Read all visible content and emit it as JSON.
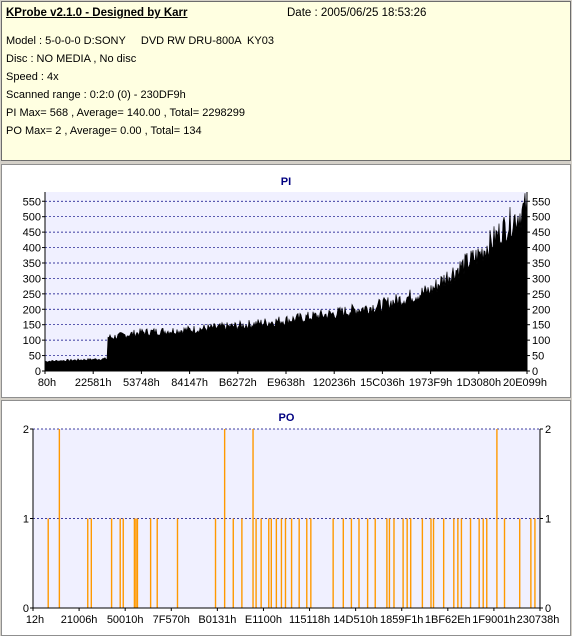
{
  "info": {
    "title": "KProbe v2.1.0 - Designed by Karr",
    "date": "Date : 2005/06/25 18:53:26",
    "model": "Model : 5-0-0-0 D:SONY     DVD RW DRU-800A  KY03",
    "disc": "Disc : NO MEDIA , No disc",
    "speed": "Speed : 4x",
    "range": "Scanned range : 0:2:0 (0) - 230DF9h",
    "pi_summary": "PI Max= 568 , Average= 140.00 , Total= 2298299",
    "po_summary": "PO Max= 2 , Average= 0.00 , Total= 134"
  },
  "chart_data": [
    {
      "type": "bar",
      "title": "PI",
      "ylim": [
        0,
        580
      ],
      "yticks": [
        0,
        50,
        100,
        150,
        200,
        250,
        300,
        350,
        400,
        450,
        500,
        550
      ],
      "xticks": [
        "80h",
        "22581h",
        "53748h",
        "84147h",
        "B6272h",
        "E9638h",
        "120236h",
        "15C036h",
        "1973F9h",
        "1D3080h",
        "20E099h"
      ],
      "grid": true,
      "color": "#000000",
      "profile": [
        [
          0,
          30
        ],
        [
          0.13,
          38
        ],
        [
          0.14,
          105
        ],
        [
          0.2,
          120
        ],
        [
          0.3,
          128
        ],
        [
          0.4,
          140
        ],
        [
          0.5,
          158
        ],
        [
          0.6,
          178
        ],
        [
          0.7,
          205
        ],
        [
          0.8,
          250
        ],
        [
          0.84,
          300
        ],
        [
          0.9,
          360
        ],
        [
          0.95,
          440
        ],
        [
          1.0,
          510
        ]
      ]
    },
    {
      "type": "bar",
      "title": "PO",
      "ylim": [
        0,
        2
      ],
      "yticks": [
        0,
        1,
        2
      ],
      "xticks": [
        "12h",
        "21006h",
        "50010h",
        "7F570h",
        "B0131h",
        "E1100h",
        "115118h",
        "14D510h",
        "1859F1h",
        "1BF62Eh",
        "1F9001h",
        "230738h"
      ],
      "grid": true,
      "color": "#ff9900",
      "spikes": [
        [
          0.03,
          1
        ],
        [
          0.052,
          2
        ],
        [
          0.108,
          1
        ],
        [
          0.115,
          1
        ],
        [
          0.155,
          1
        ],
        [
          0.172,
          1
        ],
        [
          0.178,
          1
        ],
        [
          0.2,
          1
        ],
        [
          0.203,
          1
        ],
        [
          0.206,
          1
        ],
        [
          0.232,
          1
        ],
        [
          0.245,
          1
        ],
        [
          0.285,
          1
        ],
        [
          0.36,
          1
        ],
        [
          0.378,
          2
        ],
        [
          0.395,
          1
        ],
        [
          0.412,
          1
        ],
        [
          0.434,
          2
        ],
        [
          0.44,
          1
        ],
        [
          0.45,
          1
        ],
        [
          0.465,
          1
        ],
        [
          0.47,
          1
        ],
        [
          0.48,
          1
        ],
        [
          0.49,
          1
        ],
        [
          0.498,
          1
        ],
        [
          0.51,
          1
        ],
        [
          0.525,
          1
        ],
        [
          0.54,
          1
        ],
        [
          0.548,
          1
        ],
        [
          0.592,
          1
        ],
        [
          0.612,
          1
        ],
        [
          0.628,
          1
        ],
        [
          0.643,
          1
        ],
        [
          0.66,
          1
        ],
        [
          0.675,
          1
        ],
        [
          0.698,
          1
        ],
        [
          0.703,
          1
        ],
        [
          0.712,
          1
        ],
        [
          0.73,
          1
        ],
        [
          0.738,
          1
        ],
        [
          0.745,
          1
        ],
        [
          0.768,
          1
        ],
        [
          0.785,
          1
        ],
        [
          0.79,
          1
        ],
        [
          0.81,
          1
        ],
        [
          0.83,
          1
        ],
        [
          0.838,
          1
        ],
        [
          0.845,
          1
        ],
        [
          0.863,
          1
        ],
        [
          0.88,
          1
        ],
        [
          0.888,
          1
        ],
        [
          0.895,
          1
        ],
        [
          0.915,
          2
        ],
        [
          0.93,
          1
        ],
        [
          0.96,
          1
        ],
        [
          0.982,
          1
        ],
        [
          0.99,
          1
        ]
      ]
    }
  ]
}
